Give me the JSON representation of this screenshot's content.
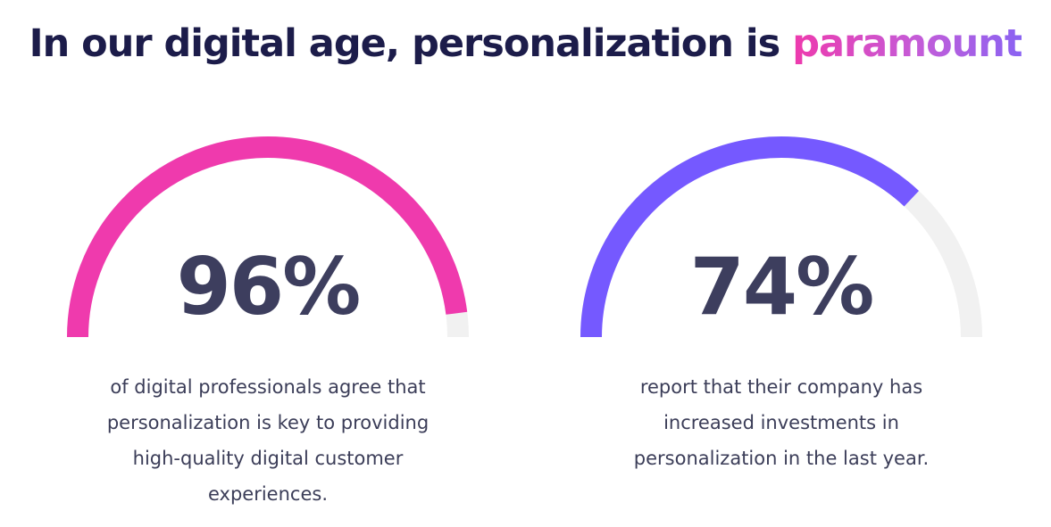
{
  "headline": {
    "prefix": "In our digital age, personalization is ",
    "accent": "paramount"
  },
  "colors": {
    "heading": "#1c1c4a",
    "value_text": "#3d3e5e",
    "caption_text": "#3b3d58",
    "track": "#f1f1f1",
    "pink": "#ef3aad",
    "purple": "#7559ff"
  },
  "chart_data": [
    {
      "type": "gauge",
      "value": 96,
      "max": 100,
      "label": "96%",
      "color": "#ef3aad",
      "caption_lines": [
        "of digital professionals agree that",
        "personalization is key to providing",
        "high-quality digital customer",
        "experiences."
      ]
    },
    {
      "type": "gauge",
      "value": 74,
      "max": 100,
      "label": "74%",
      "color": "#7559ff",
      "caption_lines": [
        "report that their company has",
        "increased investments in",
        "personalization in the last year."
      ]
    }
  ]
}
